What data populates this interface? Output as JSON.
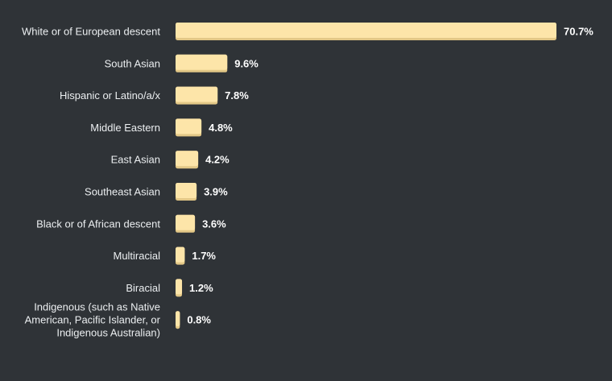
{
  "chart_data": {
    "type": "bar",
    "orientation": "horizontal",
    "title": "",
    "xlabel": "",
    "ylabel": "",
    "categories": [
      "White or of European descent",
      "South Asian",
      "Hispanic or Latino/a/x",
      "Middle Eastern",
      "East Asian",
      "Southeast Asian",
      "Black or of African descent",
      "Multiracial",
      "Biracial",
      [
        "Indigenous (such as Native",
        "American, Pacific Islander, or",
        "Indigenous Australian)"
      ]
    ],
    "values": [
      70.7,
      9.6,
      7.8,
      4.8,
      4.2,
      3.9,
      3.6,
      1.7,
      1.2,
      0.8
    ],
    "value_labels": [
      "70.7%",
      "9.6%",
      "7.8%",
      "4.8%",
      "4.2%",
      "3.9%",
      "3.6%",
      "1.7%",
      "1.2%",
      "0.8%"
    ],
    "xlim": [
      0,
      70.7
    ],
    "grid": false,
    "legend": "none",
    "colors": {
      "background": "#2f3337",
      "bar": "#fde5a9",
      "bar_shadow": "#e3c887",
      "label": "#eceff1",
      "value": "#ffffff"
    }
  }
}
